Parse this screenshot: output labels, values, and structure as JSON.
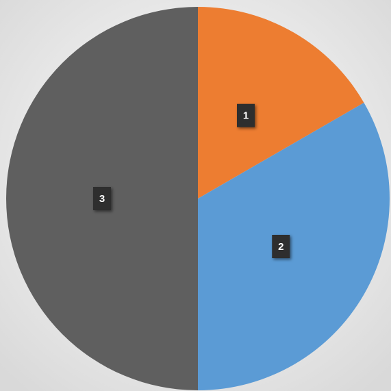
{
  "chart_data": {
    "type": "pie",
    "values": [
      1,
      2,
      3
    ],
    "colors": [
      "#ed7d31",
      "#5b9bd5",
      "#5f5f5f"
    ],
    "start_angle": 0,
    "direction": "clockwise"
  }
}
